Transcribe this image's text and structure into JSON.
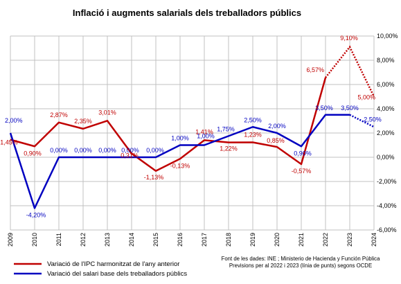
{
  "chart_data": {
    "type": "line",
    "title": "Inflació i augments salarials dels treballadors públics",
    "x": [
      "2009",
      "2010",
      "2011",
      "2012",
      "2013",
      "2014",
      "2015",
      "2016",
      "2017",
      "2018",
      "2019",
      "2020",
      "2021",
      "2022",
      "2023",
      "2024"
    ],
    "ylim": [
      -6,
      10
    ],
    "yticks": [
      "-6,00%",
      "-4,00%",
      "-2,00%",
      "0,00%",
      "2,00%",
      "4,00%",
      "6,00%",
      "8,00%",
      "10,00%"
    ],
    "grid": true,
    "legend_position": "bottom-left",
    "colors": {
      "ipc": "#c00000",
      "salari": "#0000c0",
      "grid": "#c0c0c0"
    },
    "series": [
      {
        "name": "Variació de l'IPC harmonitzat de l'any anterior",
        "values": [
          1.45,
          0.9,
          2.87,
          2.35,
          3.01,
          0.31,
          -1.13,
          -0.13,
          1.41,
          1.22,
          1.23,
          0.85,
          -0.57,
          6.57,
          9.1,
          5.0
        ],
        "labels": [
          "1,45%",
          "0,90%",
          "2,87%",
          "2,35%",
          "3,01%",
          "0,31%",
          "-1,13%",
          "-0,13%",
          "1,41%",
          "1,22%",
          "1,23%",
          "0,85%",
          "-0,57%",
          "6,57%",
          "9,10%",
          "5,00%"
        ],
        "dotted_from_index": 13
      },
      {
        "name": "Variació del salari base dels treballadors públics",
        "values": [
          2.0,
          -4.2,
          0.0,
          0.0,
          0.0,
          0.0,
          0.0,
          1.0,
          1.0,
          1.75,
          2.5,
          2.0,
          0.9,
          3.5,
          3.5,
          2.5
        ],
        "labels": [
          "2,00%",
          "-4,20%",
          "0,00%",
          "0,00%",
          "0,00%",
          "0,00%",
          "0,00%",
          "1,00%",
          "1,00%",
          "1,75%",
          "2,50%",
          "2,00%",
          "0,90%",
          "3,50%",
          "3,50%",
          "2,50%"
        ],
        "dotted_from_index": 14
      }
    ],
    "source_lines": [
      "Font de les dades: INE ; Ministerio de Hacienda y Función Pública",
      "Previsions per al 2022 i 2023 (línia de punts) segons OCDE"
    ]
  }
}
